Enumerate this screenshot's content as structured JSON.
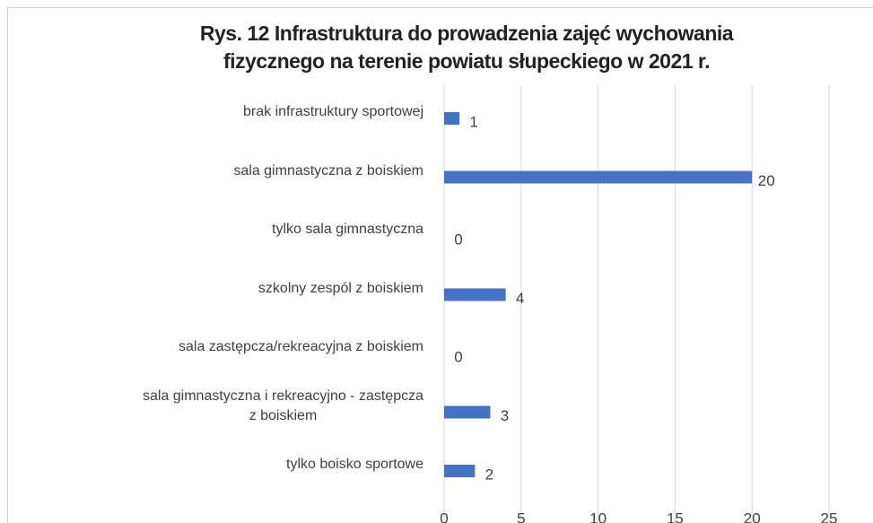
{
  "chart_data": {
    "type": "barh",
    "title": "Rys. 12 Infrastruktura do prowadzenia zajęć wychowania\nfizycznego na terenie powiatu słupeckiego w 2021 r.",
    "categories": [
      "brak infrastruktury sportowej",
      "sala gimnastyczna z boiskiem",
      "tylko sala gimnastyczna",
      "szkolny zespól z boiskiem",
      "sala zastępcza/rekreacyjna z boiskiem",
      "sala gimnastyczna i rekreacyjno - zastępcza\nz boiskiem",
      "tylko boisko sportowe"
    ],
    "values": [
      1,
      20,
      0,
      4,
      0,
      3,
      2
    ],
    "color": "#4472c4",
    "xlim": [
      0,
      25
    ],
    "xticks": [
      0,
      5,
      10,
      15,
      20,
      25
    ],
    "grid": true
  }
}
